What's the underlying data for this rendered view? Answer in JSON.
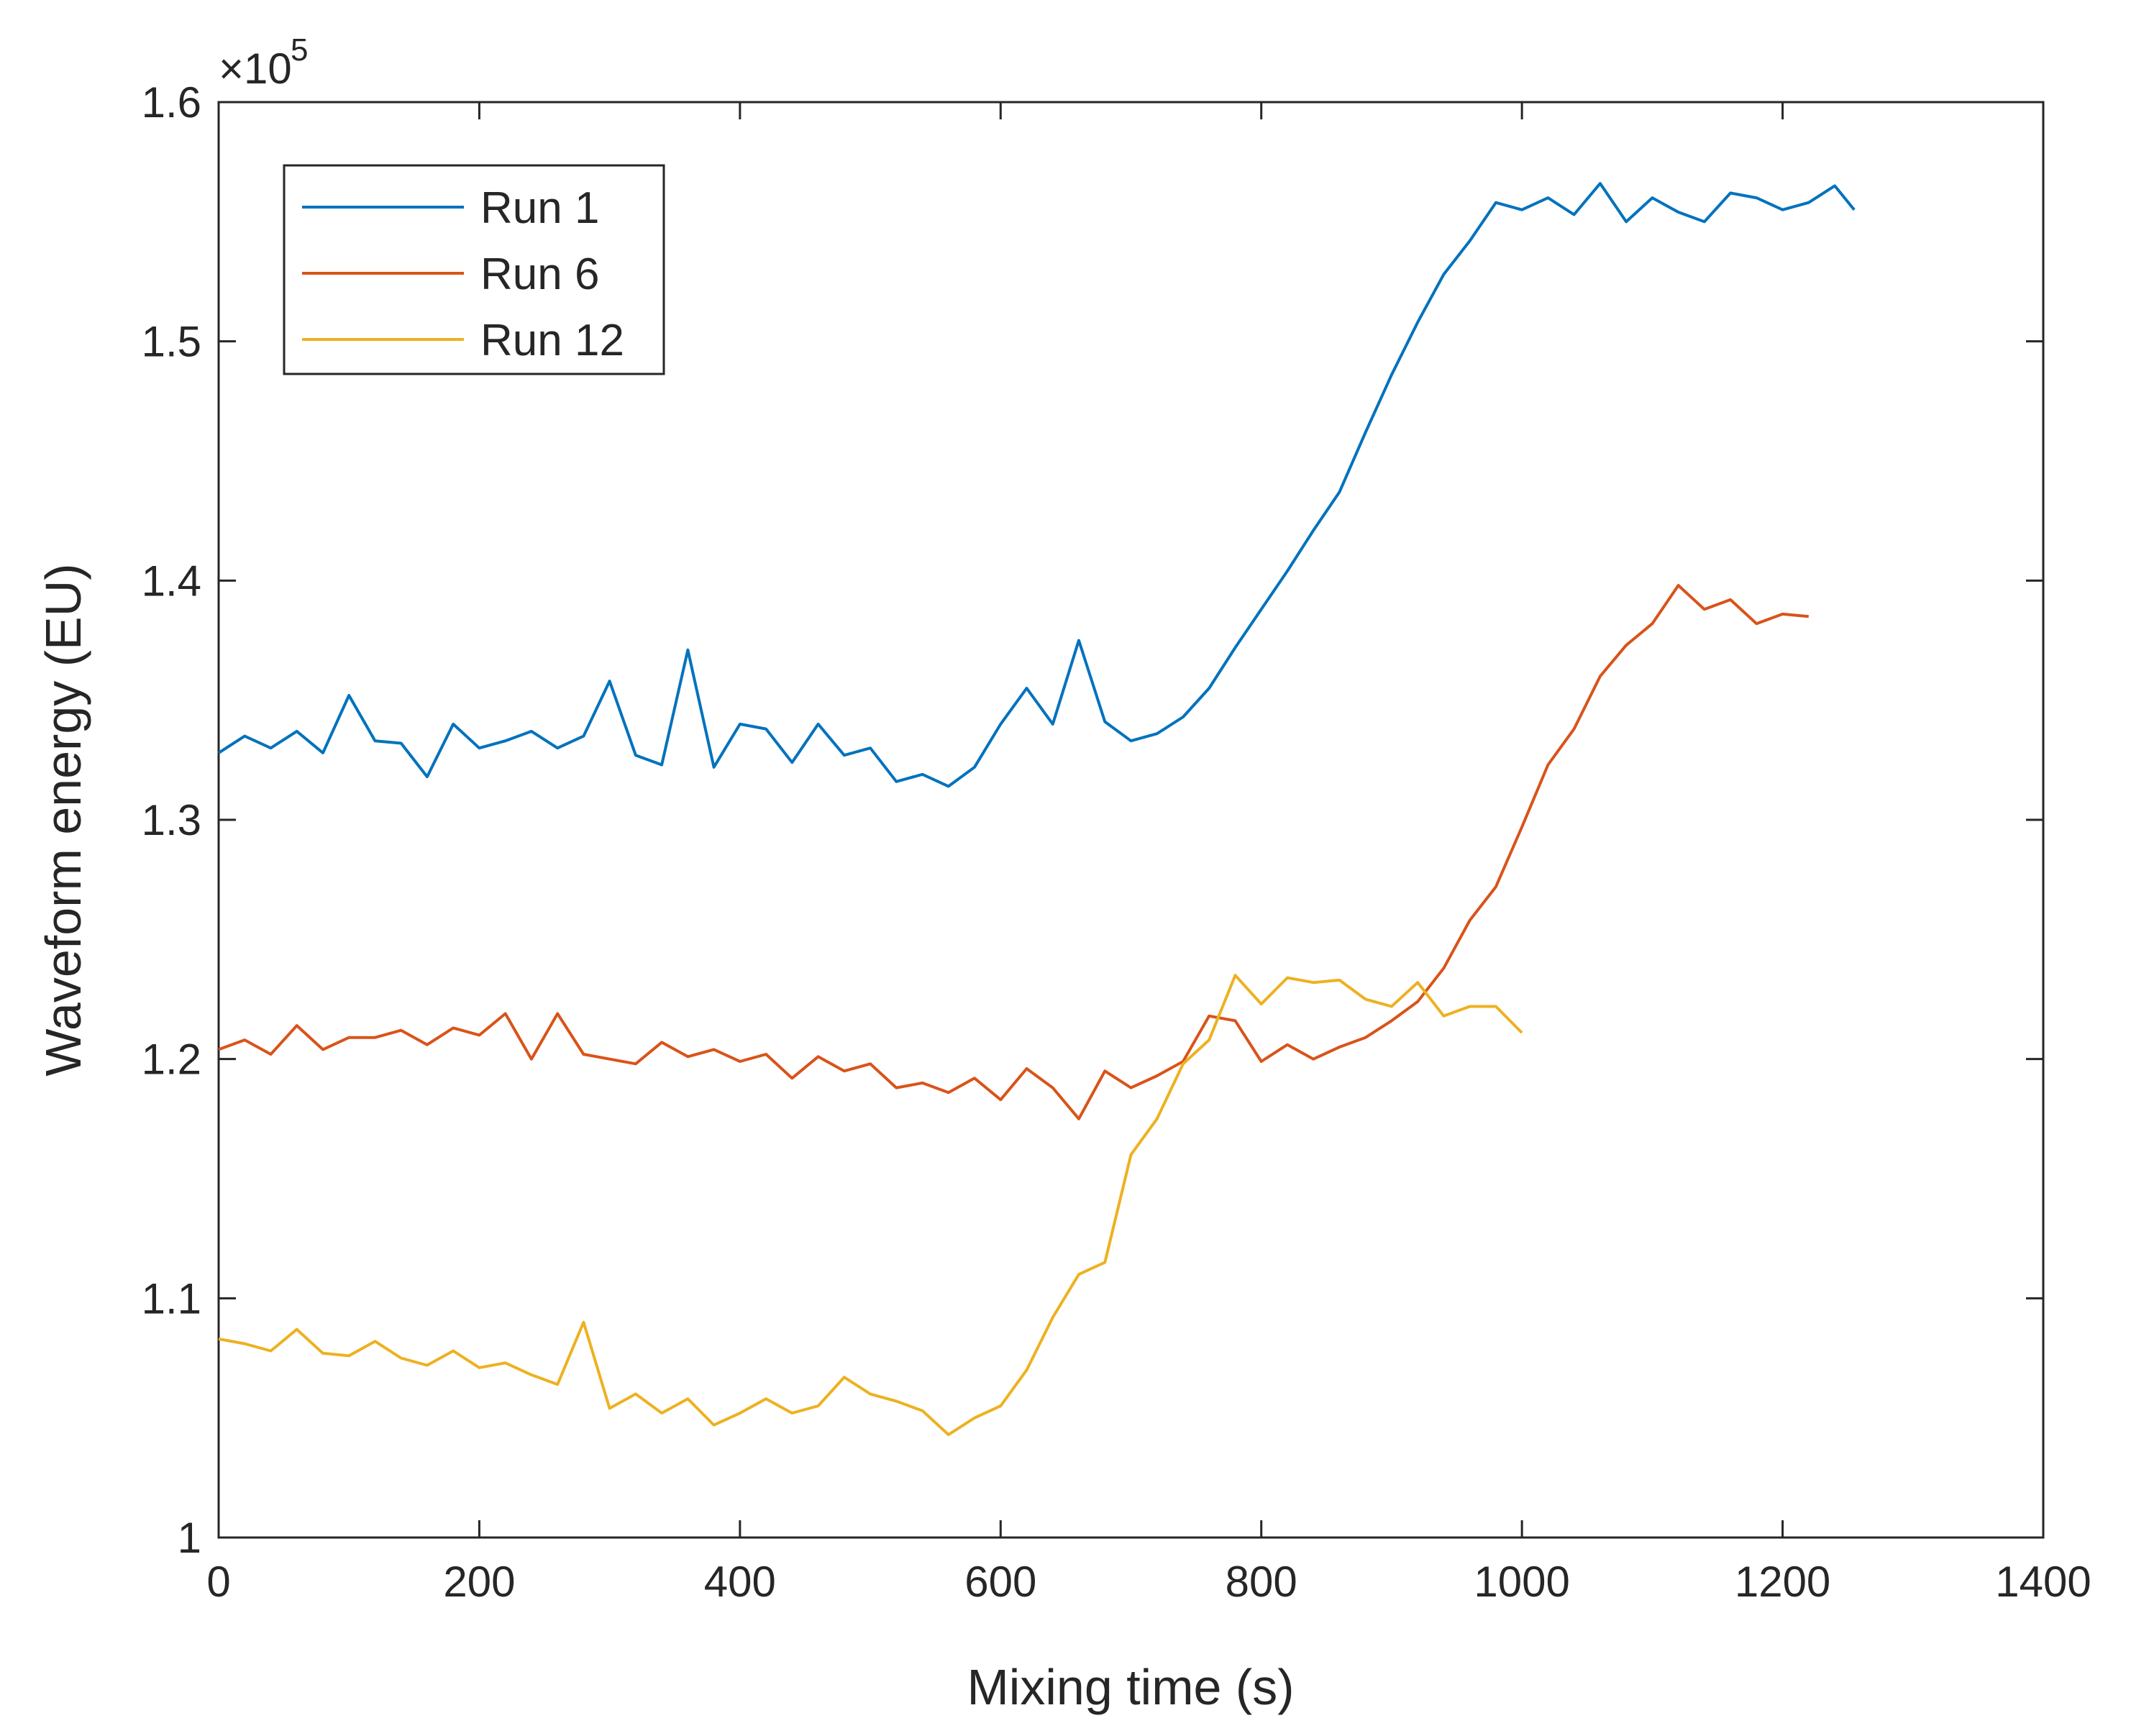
{
  "chart_data": {
    "type": "line",
    "title": "",
    "xlabel": "Mixing time (s)",
    "ylabel": "Waveform energy (EU)",
    "xlim": [
      0,
      1400
    ],
    "ylim": [
      1.0,
      1.6
    ],
    "y_exponent_label": "×10",
    "y_exponent_power": "5",
    "xticks": [
      "0",
      "200",
      "400",
      "600",
      "800",
      "1000",
      "1200",
      "1400"
    ],
    "yticks": [
      "1",
      "1.1",
      "1.2",
      "1.3",
      "1.4",
      "1.5",
      "1.6"
    ],
    "grid": false,
    "legend_position": "top-left",
    "series": [
      {
        "name": "Run 1",
        "color": "#0072BD",
        "x": [
          0,
          20,
          40,
          60,
          80,
          100,
          120,
          140,
          160,
          180,
          200,
          220,
          240,
          260,
          280,
          300,
          320,
          340,
          360,
          380,
          400,
          420,
          440,
          460,
          480,
          500,
          520,
          540,
          560,
          580,
          600,
          620,
          640,
          660,
          680,
          700,
          720,
          740,
          760,
          780,
          800,
          820,
          840,
          860,
          880,
          900,
          920,
          940,
          960,
          980,
          1000,
          1020,
          1040,
          1060,
          1080,
          1100,
          1120,
          1140,
          1160,
          1180,
          1200,
          1220,
          1240,
          1255
        ],
        "y": [
          1.328,
          1.335,
          1.33,
          1.337,
          1.328,
          1.352,
          1.333,
          1.332,
          1.318,
          1.34,
          1.33,
          1.333,
          1.337,
          1.33,
          1.335,
          1.358,
          1.327,
          1.323,
          1.371,
          1.322,
          1.34,
          1.338,
          1.324,
          1.34,
          1.327,
          1.33,
          1.316,
          1.319,
          1.314,
          1.322,
          1.34,
          1.355,
          1.34,
          1.375,
          1.341,
          1.333,
          1.336,
          1.343,
          1.355,
          1.372,
          1.388,
          1.404,
          1.421,
          1.437,
          1.462,
          1.486,
          1.508,
          1.528,
          1.542,
          1.558,
          1.555,
          1.56,
          1.553,
          1.566,
          1.55,
          1.56,
          1.554,
          1.55,
          1.562,
          1.56,
          1.555,
          1.558,
          1.565,
          1.555
        ]
      },
      {
        "name": "Run 6",
        "color": "#D95319",
        "x": [
          0,
          20,
          40,
          60,
          80,
          100,
          120,
          140,
          160,
          180,
          200,
          220,
          240,
          260,
          280,
          300,
          320,
          340,
          360,
          380,
          400,
          420,
          440,
          460,
          480,
          500,
          520,
          540,
          560,
          580,
          600,
          620,
          640,
          660,
          680,
          700,
          720,
          740,
          760,
          780,
          800,
          820,
          840,
          860,
          880,
          900,
          920,
          940,
          960,
          980,
          1000,
          1020,
          1040,
          1060,
          1080,
          1100,
          1120,
          1140,
          1160,
          1180,
          1200,
          1220
        ],
        "y": [
          1.204,
          1.208,
          1.202,
          1.214,
          1.204,
          1.209,
          1.209,
          1.212,
          1.206,
          1.213,
          1.21,
          1.219,
          1.2,
          1.219,
          1.202,
          1.2,
          1.198,
          1.207,
          1.201,
          1.204,
          1.199,
          1.202,
          1.192,
          1.201,
          1.195,
          1.198,
          1.188,
          1.19,
          1.186,
          1.192,
          1.183,
          1.196,
          1.188,
          1.175,
          1.195,
          1.188,
          1.193,
          1.199,
          1.218,
          1.216,
          1.199,
          1.206,
          1.2,
          1.205,
          1.209,
          1.216,
          1.224,
          1.238,
          1.258,
          1.272,
          1.297,
          1.323,
          1.338,
          1.36,
          1.373,
          1.382,
          1.398,
          1.388,
          1.392,
          1.382,
          1.386,
          1.385
        ]
      },
      {
        "name": "Run 12",
        "color": "#EDB120",
        "x": [
          0,
          20,
          40,
          60,
          80,
          100,
          120,
          140,
          160,
          180,
          200,
          220,
          240,
          260,
          280,
          300,
          320,
          340,
          360,
          380,
          400,
          420,
          440,
          460,
          480,
          500,
          520,
          540,
          560,
          580,
          600,
          620,
          640,
          660,
          680,
          700,
          720,
          740,
          760,
          780,
          800,
          820,
          840,
          860,
          880,
          900,
          920,
          940,
          960,
          980,
          1000
        ],
        "y": [
          1.083,
          1.081,
          1.078,
          1.087,
          1.077,
          1.076,
          1.082,
          1.075,
          1.072,
          1.078,
          1.071,
          1.073,
          1.068,
          1.064,
          1.09,
          1.054,
          1.06,
          1.052,
          1.058,
          1.047,
          1.052,
          1.058,
          1.052,
          1.055,
          1.067,
          1.06,
          1.057,
          1.053,
          1.043,
          1.05,
          1.055,
          1.07,
          1.092,
          1.11,
          1.115,
          1.16,
          1.175,
          1.198,
          1.208,
          1.235,
          1.223,
          1.234,
          1.232,
          1.233,
          1.225,
          1.222,
          1.232,
          1.218,
          1.222,
          1.222,
          1.211
        ]
      }
    ]
  }
}
